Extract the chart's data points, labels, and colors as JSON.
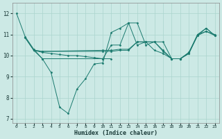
{
  "xlabel": "Humidex (Indice chaleur)",
  "bg_color": "#cce9e5",
  "line_color": "#1a7a6e",
  "grid_color": "#aad4ce",
  "xlim": [
    -0.5,
    23.5
  ],
  "ylim": [
    6.8,
    12.5
  ],
  "yticks": [
    7,
    8,
    9,
    10,
    11,
    12
  ],
  "xticks": [
    0,
    1,
    2,
    3,
    4,
    5,
    6,
    7,
    8,
    9,
    10,
    11,
    12,
    13,
    14,
    15,
    16,
    17,
    18,
    19,
    20,
    21,
    22,
    23
  ],
  "lines": [
    {
      "x": [
        0,
        1,
        2,
        3,
        4,
        5,
        6,
        7,
        8,
        9,
        10,
        11,
        12,
        13,
        14,
        15,
        16,
        17,
        18,
        19,
        20,
        21,
        22,
        23
      ],
      "y": [
        12.0,
        10.9,
        10.3,
        9.85,
        9.2,
        7.55,
        7.25,
        8.4,
        8.9,
        9.6,
        9.65,
        11.1,
        11.3,
        11.55,
        10.5,
        10.65,
        10.25,
        10.1,
        9.85,
        9.85,
        10.15,
        11.0,
        11.3,
        10.95
      ]
    },
    {
      "x": [
        2,
        3,
        4,
        5,
        6,
        7,
        8,
        9,
        10,
        11
      ],
      "y": [
        10.25,
        10.15,
        10.1,
        10.05,
        10.0,
        10.0,
        9.95,
        9.9,
        9.85,
        9.85
      ]
    },
    {
      "x": [
        1,
        2,
        3,
        10,
        11,
        12,
        13,
        14,
        15,
        16,
        17,
        18,
        19,
        20,
        21,
        22,
        23
      ],
      "y": [
        10.85,
        10.25,
        10.2,
        10.2,
        10.2,
        10.25,
        10.25,
        10.65,
        10.65,
        10.65,
        10.2,
        9.85,
        9.85,
        10.1,
        11.0,
        11.15,
        10.95
      ]
    },
    {
      "x": [
        2,
        3,
        10,
        11,
        12,
        13,
        14,
        15,
        16,
        17,
        18,
        19,
        20,
        21,
        22,
        23
      ],
      "y": [
        10.25,
        10.2,
        10.25,
        10.25,
        10.3,
        10.3,
        10.65,
        10.65,
        10.65,
        10.65,
        9.85,
        9.85,
        10.15,
        10.95,
        11.15,
        11.0
      ]
    },
    {
      "x": [
        1,
        2,
        3,
        10,
        11,
        12,
        13,
        14,
        15,
        16,
        17,
        18,
        19,
        20,
        21,
        22,
        23
      ],
      "y": [
        10.85,
        10.25,
        9.85,
        9.85,
        10.5,
        10.5,
        11.55,
        11.55,
        10.5,
        10.65,
        10.25,
        9.85,
        9.85,
        10.1,
        10.95,
        11.3,
        10.95
      ]
    }
  ]
}
